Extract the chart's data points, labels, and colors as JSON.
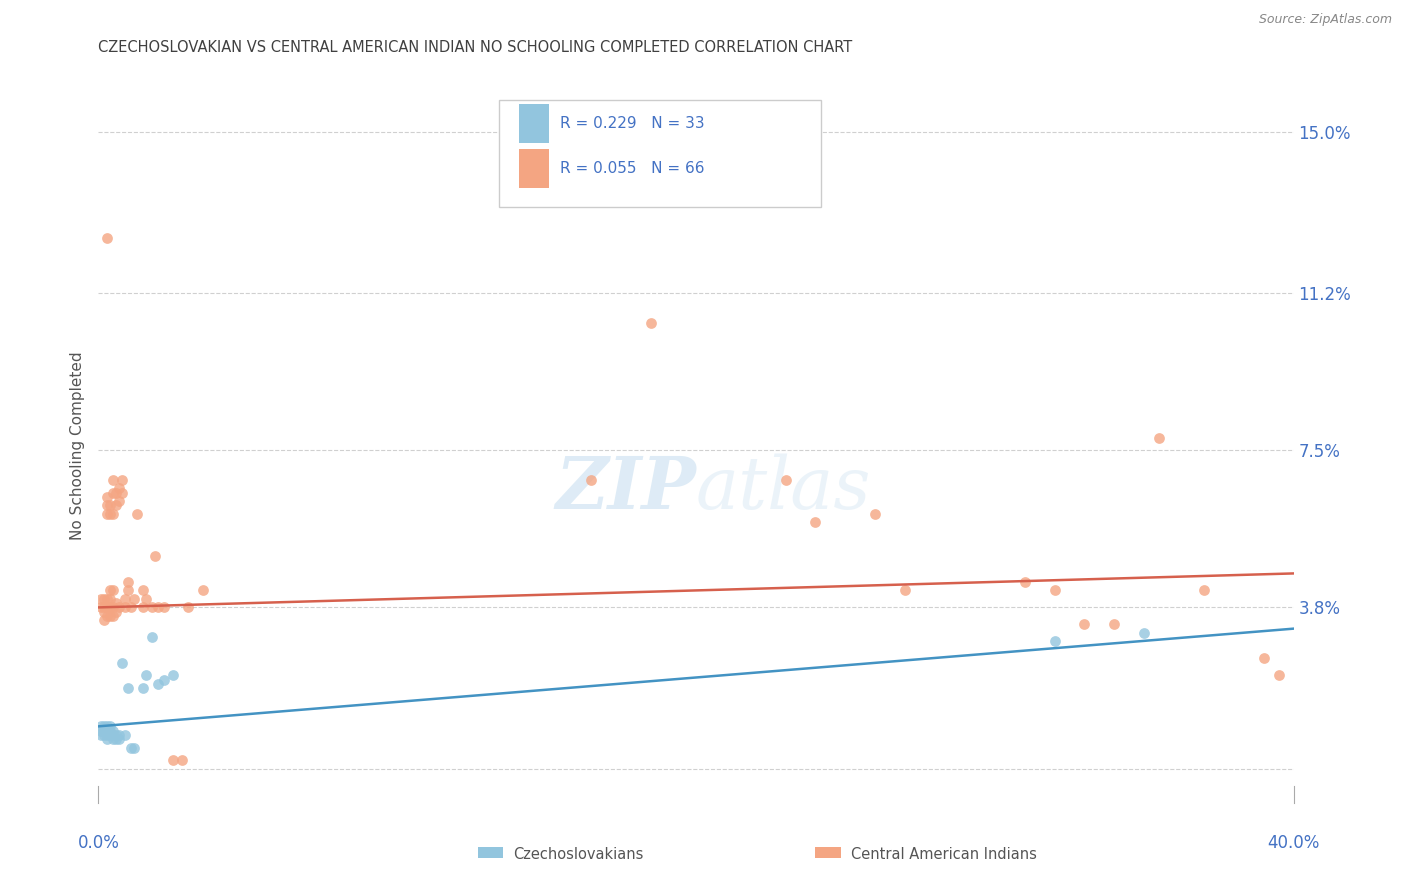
{
  "title": "CZECHOSLOVAKIAN VS CENTRAL AMERICAN INDIAN NO SCHOOLING COMPLETED CORRELATION CHART",
  "source": "Source: ZipAtlas.com",
  "ylabel": "No Schooling Completed",
  "yticks": [
    0.0,
    0.038,
    0.075,
    0.112,
    0.15
  ],
  "ytick_labels": [
    "",
    "3.8%",
    "7.5%",
    "11.2%",
    "15.0%"
  ],
  "xlim": [
    0.0,
    0.4
  ],
  "ylim": [
    -0.008,
    0.16
  ],
  "watermark_zip": "ZIP",
  "watermark_atlas": "atlas",
  "blue_color": "#92c5de",
  "pink_color": "#f4a582",
  "blue_line_color": "#4393c3",
  "pink_line_color": "#d6604d",
  "axis_label_color": "#4472c4",
  "title_color": "#404040",
  "grid_color": "#d0d0d0",
  "background_color": "#ffffff",
  "blue_dots": [
    [
      0.001,
      0.01
    ],
    [
      0.001,
      0.009
    ],
    [
      0.001,
      0.008
    ],
    [
      0.002,
      0.01
    ],
    [
      0.002,
      0.008
    ],
    [
      0.002,
      0.009
    ],
    [
      0.003,
      0.01
    ],
    [
      0.003,
      0.009
    ],
    [
      0.003,
      0.008
    ],
    [
      0.003,
      0.007
    ],
    [
      0.004,
      0.009
    ],
    [
      0.004,
      0.008
    ],
    [
      0.004,
      0.01
    ],
    [
      0.005,
      0.009
    ],
    [
      0.005,
      0.008
    ],
    [
      0.005,
      0.007
    ],
    [
      0.006,
      0.008
    ],
    [
      0.006,
      0.007
    ],
    [
      0.007,
      0.008
    ],
    [
      0.007,
      0.007
    ],
    [
      0.008,
      0.025
    ],
    [
      0.009,
      0.008
    ],
    [
      0.01,
      0.019
    ],
    [
      0.011,
      0.005
    ],
    [
      0.012,
      0.005
    ],
    [
      0.015,
      0.019
    ],
    [
      0.016,
      0.022
    ],
    [
      0.018,
      0.031
    ],
    [
      0.02,
      0.02
    ],
    [
      0.022,
      0.021
    ],
    [
      0.025,
      0.022
    ],
    [
      0.32,
      0.03
    ],
    [
      0.35,
      0.032
    ]
  ],
  "pink_dots": [
    [
      0.001,
      0.038
    ],
    [
      0.001,
      0.04
    ],
    [
      0.002,
      0.037
    ],
    [
      0.002,
      0.04
    ],
    [
      0.002,
      0.035
    ],
    [
      0.002,
      0.038
    ],
    [
      0.003,
      0.036
    ],
    [
      0.003,
      0.038
    ],
    [
      0.003,
      0.04
    ],
    [
      0.003,
      0.06
    ],
    [
      0.003,
      0.062
    ],
    [
      0.003,
      0.064
    ],
    [
      0.003,
      0.125
    ],
    [
      0.004,
      0.036
    ],
    [
      0.004,
      0.038
    ],
    [
      0.004,
      0.04
    ],
    [
      0.004,
      0.042
    ],
    [
      0.004,
      0.06
    ],
    [
      0.004,
      0.062
    ],
    [
      0.005,
      0.036
    ],
    [
      0.005,
      0.038
    ],
    [
      0.005,
      0.042
    ],
    [
      0.005,
      0.06
    ],
    [
      0.005,
      0.065
    ],
    [
      0.005,
      0.068
    ],
    [
      0.006,
      0.037
    ],
    [
      0.006,
      0.039
    ],
    [
      0.006,
      0.062
    ],
    [
      0.006,
      0.065
    ],
    [
      0.007,
      0.038
    ],
    [
      0.007,
      0.063
    ],
    [
      0.007,
      0.066
    ],
    [
      0.008,
      0.065
    ],
    [
      0.008,
      0.068
    ],
    [
      0.009,
      0.038
    ],
    [
      0.009,
      0.04
    ],
    [
      0.01,
      0.042
    ],
    [
      0.01,
      0.044
    ],
    [
      0.011,
      0.038
    ],
    [
      0.012,
      0.04
    ],
    [
      0.013,
      0.06
    ],
    [
      0.015,
      0.038
    ],
    [
      0.015,
      0.042
    ],
    [
      0.016,
      0.04
    ],
    [
      0.018,
      0.038
    ],
    [
      0.019,
      0.05
    ],
    [
      0.02,
      0.038
    ],
    [
      0.022,
      0.038
    ],
    [
      0.025,
      0.002
    ],
    [
      0.028,
      0.002
    ],
    [
      0.03,
      0.038
    ],
    [
      0.035,
      0.042
    ],
    [
      0.165,
      0.068
    ],
    [
      0.185,
      0.105
    ],
    [
      0.23,
      0.068
    ],
    [
      0.24,
      0.058
    ],
    [
      0.26,
      0.06
    ],
    [
      0.27,
      0.042
    ],
    [
      0.31,
      0.044
    ],
    [
      0.32,
      0.042
    ],
    [
      0.33,
      0.034
    ],
    [
      0.34,
      0.034
    ],
    [
      0.355,
      0.078
    ],
    [
      0.37,
      0.042
    ],
    [
      0.39,
      0.026
    ],
    [
      0.395,
      0.022
    ]
  ],
  "blue_dot_size": 60,
  "pink_dot_size": 60,
  "blue_line_x": [
    0.0,
    0.4
  ],
  "blue_line_y": [
    0.01,
    0.033
  ],
  "pink_line_x": [
    0.0,
    0.4
  ],
  "pink_line_y": [
    0.038,
    0.046
  ]
}
